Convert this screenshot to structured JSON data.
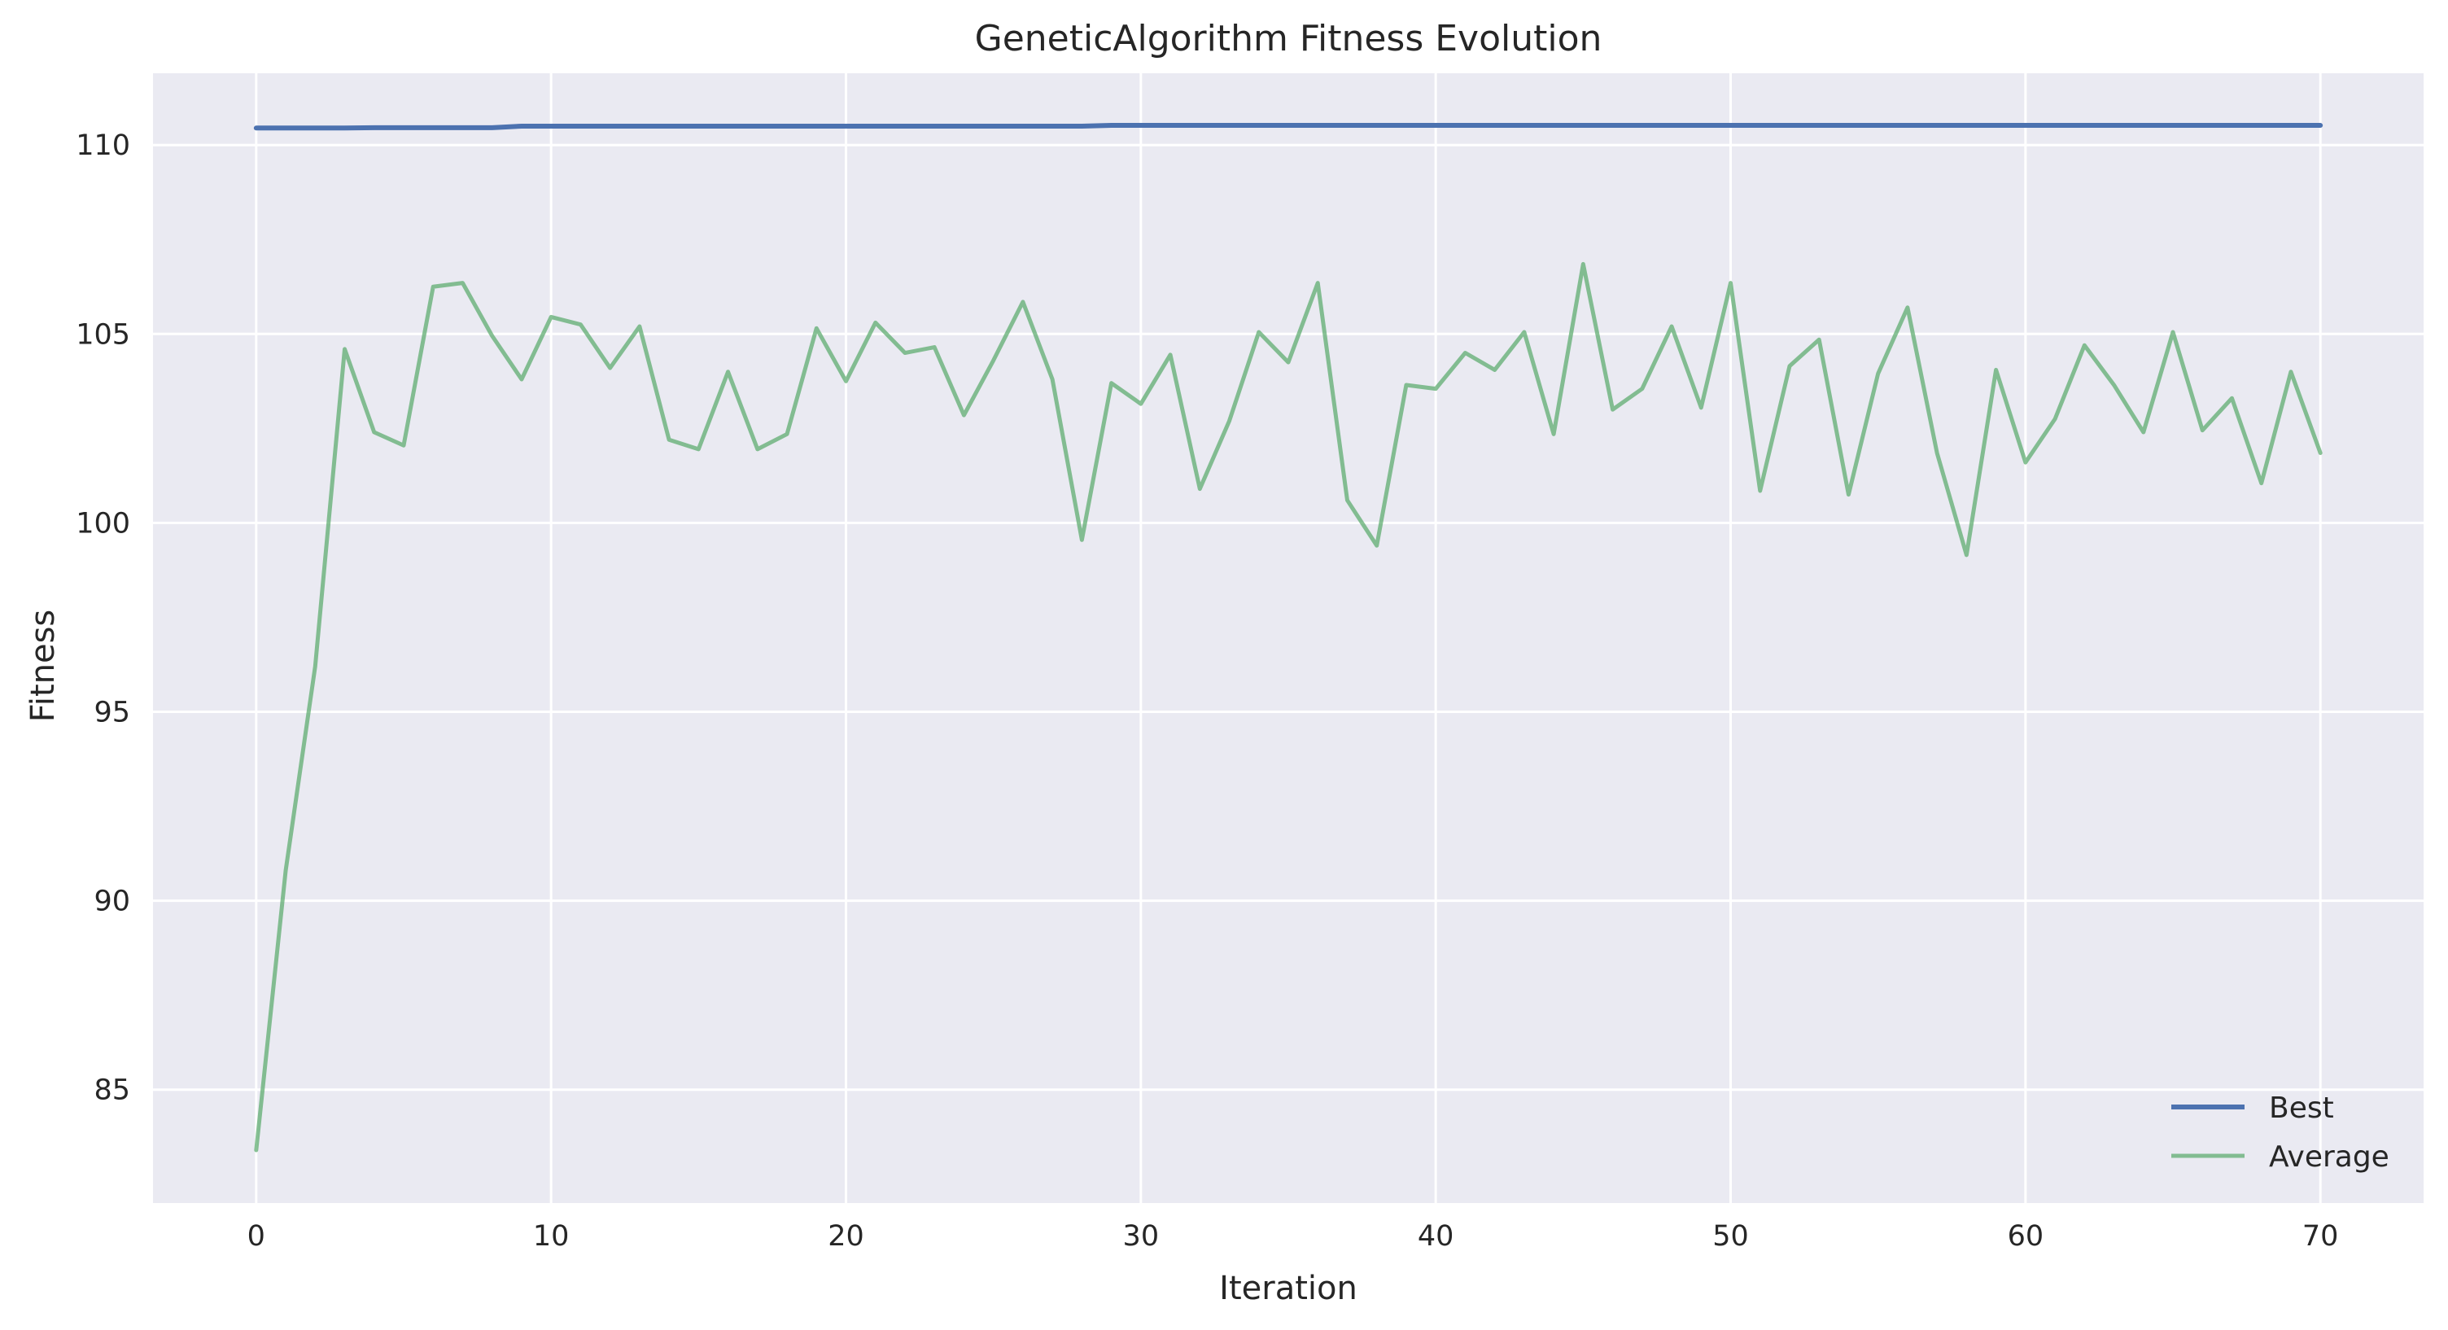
{
  "chart_data": {
    "type": "line",
    "title": "GeneticAlgorithm Fitness Evolution",
    "xlabel": "Iteration",
    "ylabel": "Fitness",
    "xlim": [
      -3.5,
      73.5
    ],
    "ylim": [
      82.0,
      111.9
    ],
    "xticks": [
      0,
      10,
      20,
      30,
      40,
      50,
      60,
      70
    ],
    "yticks": [
      85,
      90,
      95,
      100,
      105,
      110
    ],
    "grid": true,
    "background": "#eaeaf2",
    "legend": {
      "position": "lower-right"
    },
    "x": [
      0,
      1,
      2,
      3,
      4,
      5,
      6,
      7,
      8,
      9,
      10,
      11,
      12,
      13,
      14,
      15,
      16,
      17,
      18,
      19,
      20,
      21,
      22,
      23,
      24,
      25,
      26,
      27,
      28,
      29,
      30,
      31,
      32,
      33,
      34,
      35,
      36,
      37,
      38,
      39,
      40,
      41,
      42,
      43,
      44,
      45,
      46,
      47,
      48,
      49,
      50,
      51,
      52,
      53,
      54,
      55,
      56,
      57,
      58,
      59,
      60,
      61,
      62,
      63,
      64,
      65,
      66,
      67,
      68,
      69,
      70
    ],
    "series": [
      {
        "name": "Best",
        "color": "#4c72b0",
        "values": [
          110.45,
          110.45,
          110.45,
          110.45,
          110.46,
          110.46,
          110.46,
          110.46,
          110.46,
          110.5,
          110.5,
          110.5,
          110.5,
          110.5,
          110.5,
          110.5,
          110.5,
          110.5,
          110.5,
          110.5,
          110.5,
          110.5,
          110.5,
          110.5,
          110.5,
          110.5,
          110.5,
          110.5,
          110.5,
          110.52,
          110.52,
          110.52,
          110.52,
          110.52,
          110.52,
          110.52,
          110.52,
          110.52,
          110.52,
          110.52,
          110.52,
          110.52,
          110.52,
          110.52,
          110.52,
          110.52,
          110.52,
          110.52,
          110.52,
          110.52,
          110.52,
          110.52,
          110.52,
          110.52,
          110.52,
          110.52,
          110.52,
          110.52,
          110.52,
          110.52,
          110.52,
          110.52,
          110.52,
          110.52,
          110.52,
          110.52,
          110.52,
          110.52,
          110.52,
          110.52,
          110.52
        ]
      },
      {
        "name": "Average",
        "color": "#55a868",
        "values": [
          83.4,
          90.8,
          96.2,
          104.6,
          102.4,
          102.05,
          106.25,
          106.35,
          104.95,
          103.8,
          105.45,
          105.25,
          104.1,
          105.2,
          102.2,
          101.95,
          104.0,
          101.95,
          102.35,
          105.15,
          103.75,
          105.3,
          104.5,
          104.65,
          102.85,
          104.3,
          105.85,
          103.8,
          99.55,
          103.7,
          103.15,
          104.45,
          100.9,
          102.7,
          105.05,
          104.25,
          106.35,
          100.6,
          99.4,
          103.65,
          103.55,
          104.5,
          104.05,
          105.05,
          102.35,
          106.85,
          103.0,
          103.55,
          105.2,
          103.05,
          106.35,
          100.85,
          104.15,
          104.85,
          100.75,
          103.95,
          105.7,
          101.85,
          99.15,
          104.05,
          101.6,
          102.75,
          104.7,
          103.65,
          102.4,
          105.05,
          102.45,
          103.3,
          101.05,
          104.0,
          101.85
        ]
      }
    ]
  }
}
